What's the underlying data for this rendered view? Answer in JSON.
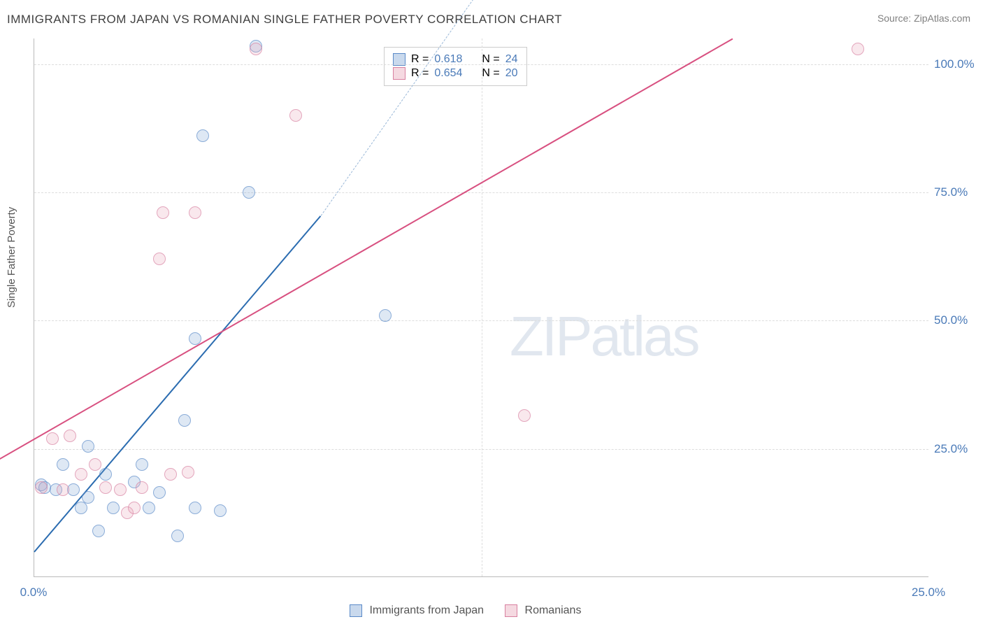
{
  "title": "IMMIGRANTS FROM JAPAN VS ROMANIAN SINGLE FATHER POVERTY CORRELATION CHART",
  "source": "Source: ZipAtlas.com",
  "y_axis_label": "Single Father Poverty",
  "watermark_zip": "ZIP",
  "watermark_atlas": "atlas",
  "chart": {
    "type": "scatter",
    "xlim": [
      0,
      25
    ],
    "ylim": [
      0,
      105
    ],
    "x_ticks": [
      0.0,
      25.0
    ],
    "y_ticks": [
      25.0,
      50.0,
      75.0,
      100.0
    ],
    "x_tick_labels": [
      "0.0%",
      "25.0%"
    ],
    "y_tick_labels": [
      "25.0%",
      "50.0%",
      "75.0%",
      "100.0%"
    ],
    "x_grid_positions": [
      12.5
    ],
    "background_color": "#ffffff",
    "grid_color": "#dddddd",
    "axis_color": "#bbbbbb",
    "tick_label_color": "#4a7ab8",
    "tick_fontsize": 17,
    "title_fontsize": 17,
    "label_fontsize": 15,
    "point_radius": 9,
    "series": [
      {
        "name": "Immigrants from Japan",
        "color_fill": "rgba(120,160,210,0.35)",
        "color_stroke": "#5a8ac8",
        "line_color": "#2b6cb0",
        "R": "0.618",
        "N": "24",
        "regression": {
          "x1": 0.0,
          "y1": 5.0,
          "x2": 8.0,
          "y2": 70.5,
          "dash_ext_x": 14.0,
          "dash_ext_y": 130
        },
        "points": [
          {
            "x": 0.2,
            "y": 18.0
          },
          {
            "x": 0.3,
            "y": 17.5
          },
          {
            "x": 0.6,
            "y": 17.0
          },
          {
            "x": 0.8,
            "y": 22.0
          },
          {
            "x": 1.1,
            "y": 17.0
          },
          {
            "x": 1.3,
            "y": 13.5
          },
          {
            "x": 1.5,
            "y": 15.5
          },
          {
            "x": 1.5,
            "y": 25.5
          },
          {
            "x": 1.8,
            "y": 9.0
          },
          {
            "x": 2.0,
            "y": 20.0
          },
          {
            "x": 2.2,
            "y": 13.5
          },
          {
            "x": 2.8,
            "y": 18.5
          },
          {
            "x": 3.0,
            "y": 22.0
          },
          {
            "x": 3.2,
            "y": 13.5
          },
          {
            "x": 3.5,
            "y": 16.5
          },
          {
            "x": 4.0,
            "y": 8.0
          },
          {
            "x": 4.2,
            "y": 30.5
          },
          {
            "x": 4.5,
            "y": 13.5
          },
          {
            "x": 4.5,
            "y": 46.5
          },
          {
            "x": 4.7,
            "y": 86.0
          },
          {
            "x": 5.2,
            "y": 13.0
          },
          {
            "x": 6.0,
            "y": 75.0
          },
          {
            "x": 6.2,
            "y": 103.5
          },
          {
            "x": 9.8,
            "y": 51.0
          }
        ]
      },
      {
        "name": "Romanians",
        "color_fill": "rgba(230,160,180,0.35)",
        "color_stroke": "#d880a0",
        "line_color": "#d85080",
        "R": "0.654",
        "N": "20",
        "regression": {
          "x1": -1.0,
          "y1": 23.0,
          "x2": 19.5,
          "y2": 105.0
        },
        "points": [
          {
            "x": 0.2,
            "y": 17.5
          },
          {
            "x": 0.5,
            "y": 27.0
          },
          {
            "x": 0.8,
            "y": 17.0
          },
          {
            "x": 1.0,
            "y": 27.5
          },
          {
            "x": 1.3,
            "y": 20.0
          },
          {
            "x": 1.7,
            "y": 22.0
          },
          {
            "x": 2.0,
            "y": 17.5
          },
          {
            "x": 2.4,
            "y": 17.0
          },
          {
            "x": 2.6,
            "y": 12.5
          },
          {
            "x": 2.8,
            "y": 13.5
          },
          {
            "x": 3.0,
            "y": 17.5
          },
          {
            "x": 3.5,
            "y": 62.0
          },
          {
            "x": 3.6,
            "y": 71.0
          },
          {
            "x": 3.8,
            "y": 20.0
          },
          {
            "x": 4.3,
            "y": 20.5
          },
          {
            "x": 4.5,
            "y": 71.0
          },
          {
            "x": 6.2,
            "y": 103.0
          },
          {
            "x": 7.3,
            "y": 90.0
          },
          {
            "x": 13.7,
            "y": 31.5
          },
          {
            "x": 23.0,
            "y": 103.0
          }
        ]
      }
    ]
  },
  "legend_top": {
    "r_label": "R =",
    "n_label": "N ="
  },
  "legend_bottom": {
    "series1": "Immigrants from Japan",
    "series2": "Romanians"
  }
}
